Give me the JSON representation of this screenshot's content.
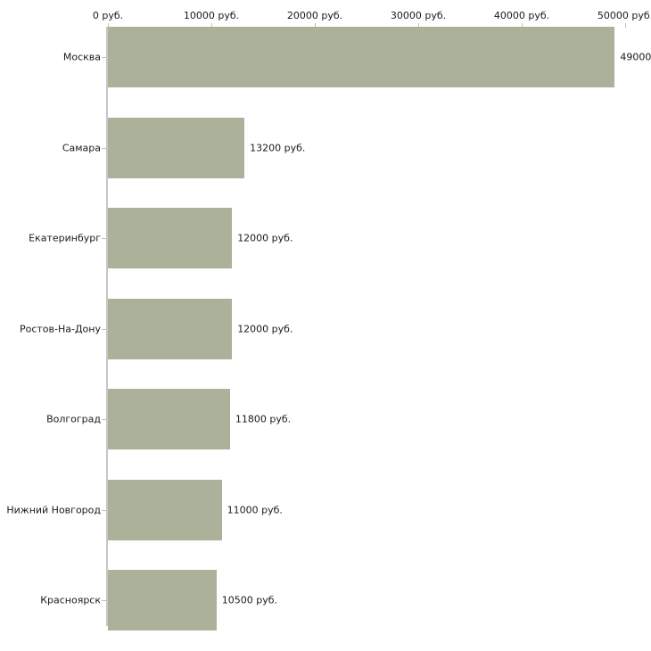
{
  "chart_data": {
    "type": "bar",
    "orientation": "horizontal",
    "title": "",
    "xlabel": "",
    "ylabel": "",
    "grid": false,
    "legend": false,
    "categories": [
      "Москва",
      "Самара",
      "Екатеринбург",
      "Ростов-На-Дону",
      "Волгоград",
      "Нижний Новгород",
      "Красноярск"
    ],
    "values": [
      49000,
      13200,
      12000,
      12000,
      11800,
      11000,
      10500
    ],
    "value_labels": [
      "49000",
      "13200 руб.",
      "12000 руб.",
      "12000 руб.",
      "11800 руб.",
      "11000 руб.",
      "10500 руб."
    ],
    "x_axis": {
      "position": "top",
      "range": [
        0,
        50000
      ],
      "ticks": [
        0,
        10000,
        20000,
        30000,
        40000,
        50000
      ],
      "tick_labels": [
        "0 руб.",
        "10000 руб.",
        "20000 руб.",
        "30000 руб.",
        "40000 руб.",
        "50000 руб."
      ]
    },
    "colors": {
      "bar": "#acb199",
      "axis_line": "#c6c6c6",
      "tick": "#c2c596",
      "text": "#1a1a1a"
    }
  }
}
